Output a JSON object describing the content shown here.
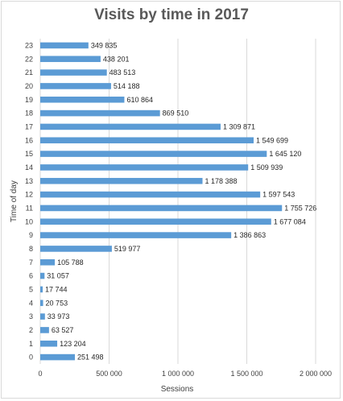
{
  "chart_data": {
    "type": "bar",
    "orientation": "horizontal",
    "title": "Visits by time in 2017",
    "xlabel": "Sessions",
    "ylabel": "Time of day",
    "xlim": [
      0,
      2000000
    ],
    "x_ticks": [
      "0",
      "500 000",
      "1 000 000",
      "1 500 000",
      "2 000 000"
    ],
    "grid": true,
    "legend": "none",
    "bar_color": "#5b9bd5",
    "categories": [
      "0",
      "1",
      "2",
      "3",
      "4",
      "5",
      "6",
      "7",
      "8",
      "9",
      "10",
      "11",
      "12",
      "13",
      "14",
      "15",
      "16",
      "17",
      "18",
      "19",
      "20",
      "21",
      "22",
      "23"
    ],
    "values": [
      251498,
      123204,
      63527,
      33973,
      20753,
      17744,
      31057,
      105788,
      519977,
      1386863,
      1677084,
      1755726,
      1597543,
      1178388,
      1509939,
      1645120,
      1549699,
      1309871,
      869510,
      610864,
      514188,
      483513,
      438201,
      349835
    ],
    "data_labels": [
      "251 498",
      "123 204",
      "63 527",
      "33 973",
      "20 753",
      "17 744",
      "31 057",
      "105 788",
      "519 977",
      "1 386 863",
      "1 677 084",
      "1 755 726",
      "1 597 543",
      "1 178 388",
      "1 509 939",
      "1 645 120",
      "1 549 699",
      "1 309 871",
      "869 510",
      "610 864",
      "514 188",
      "483 513",
      "438 201",
      "349 835"
    ]
  }
}
